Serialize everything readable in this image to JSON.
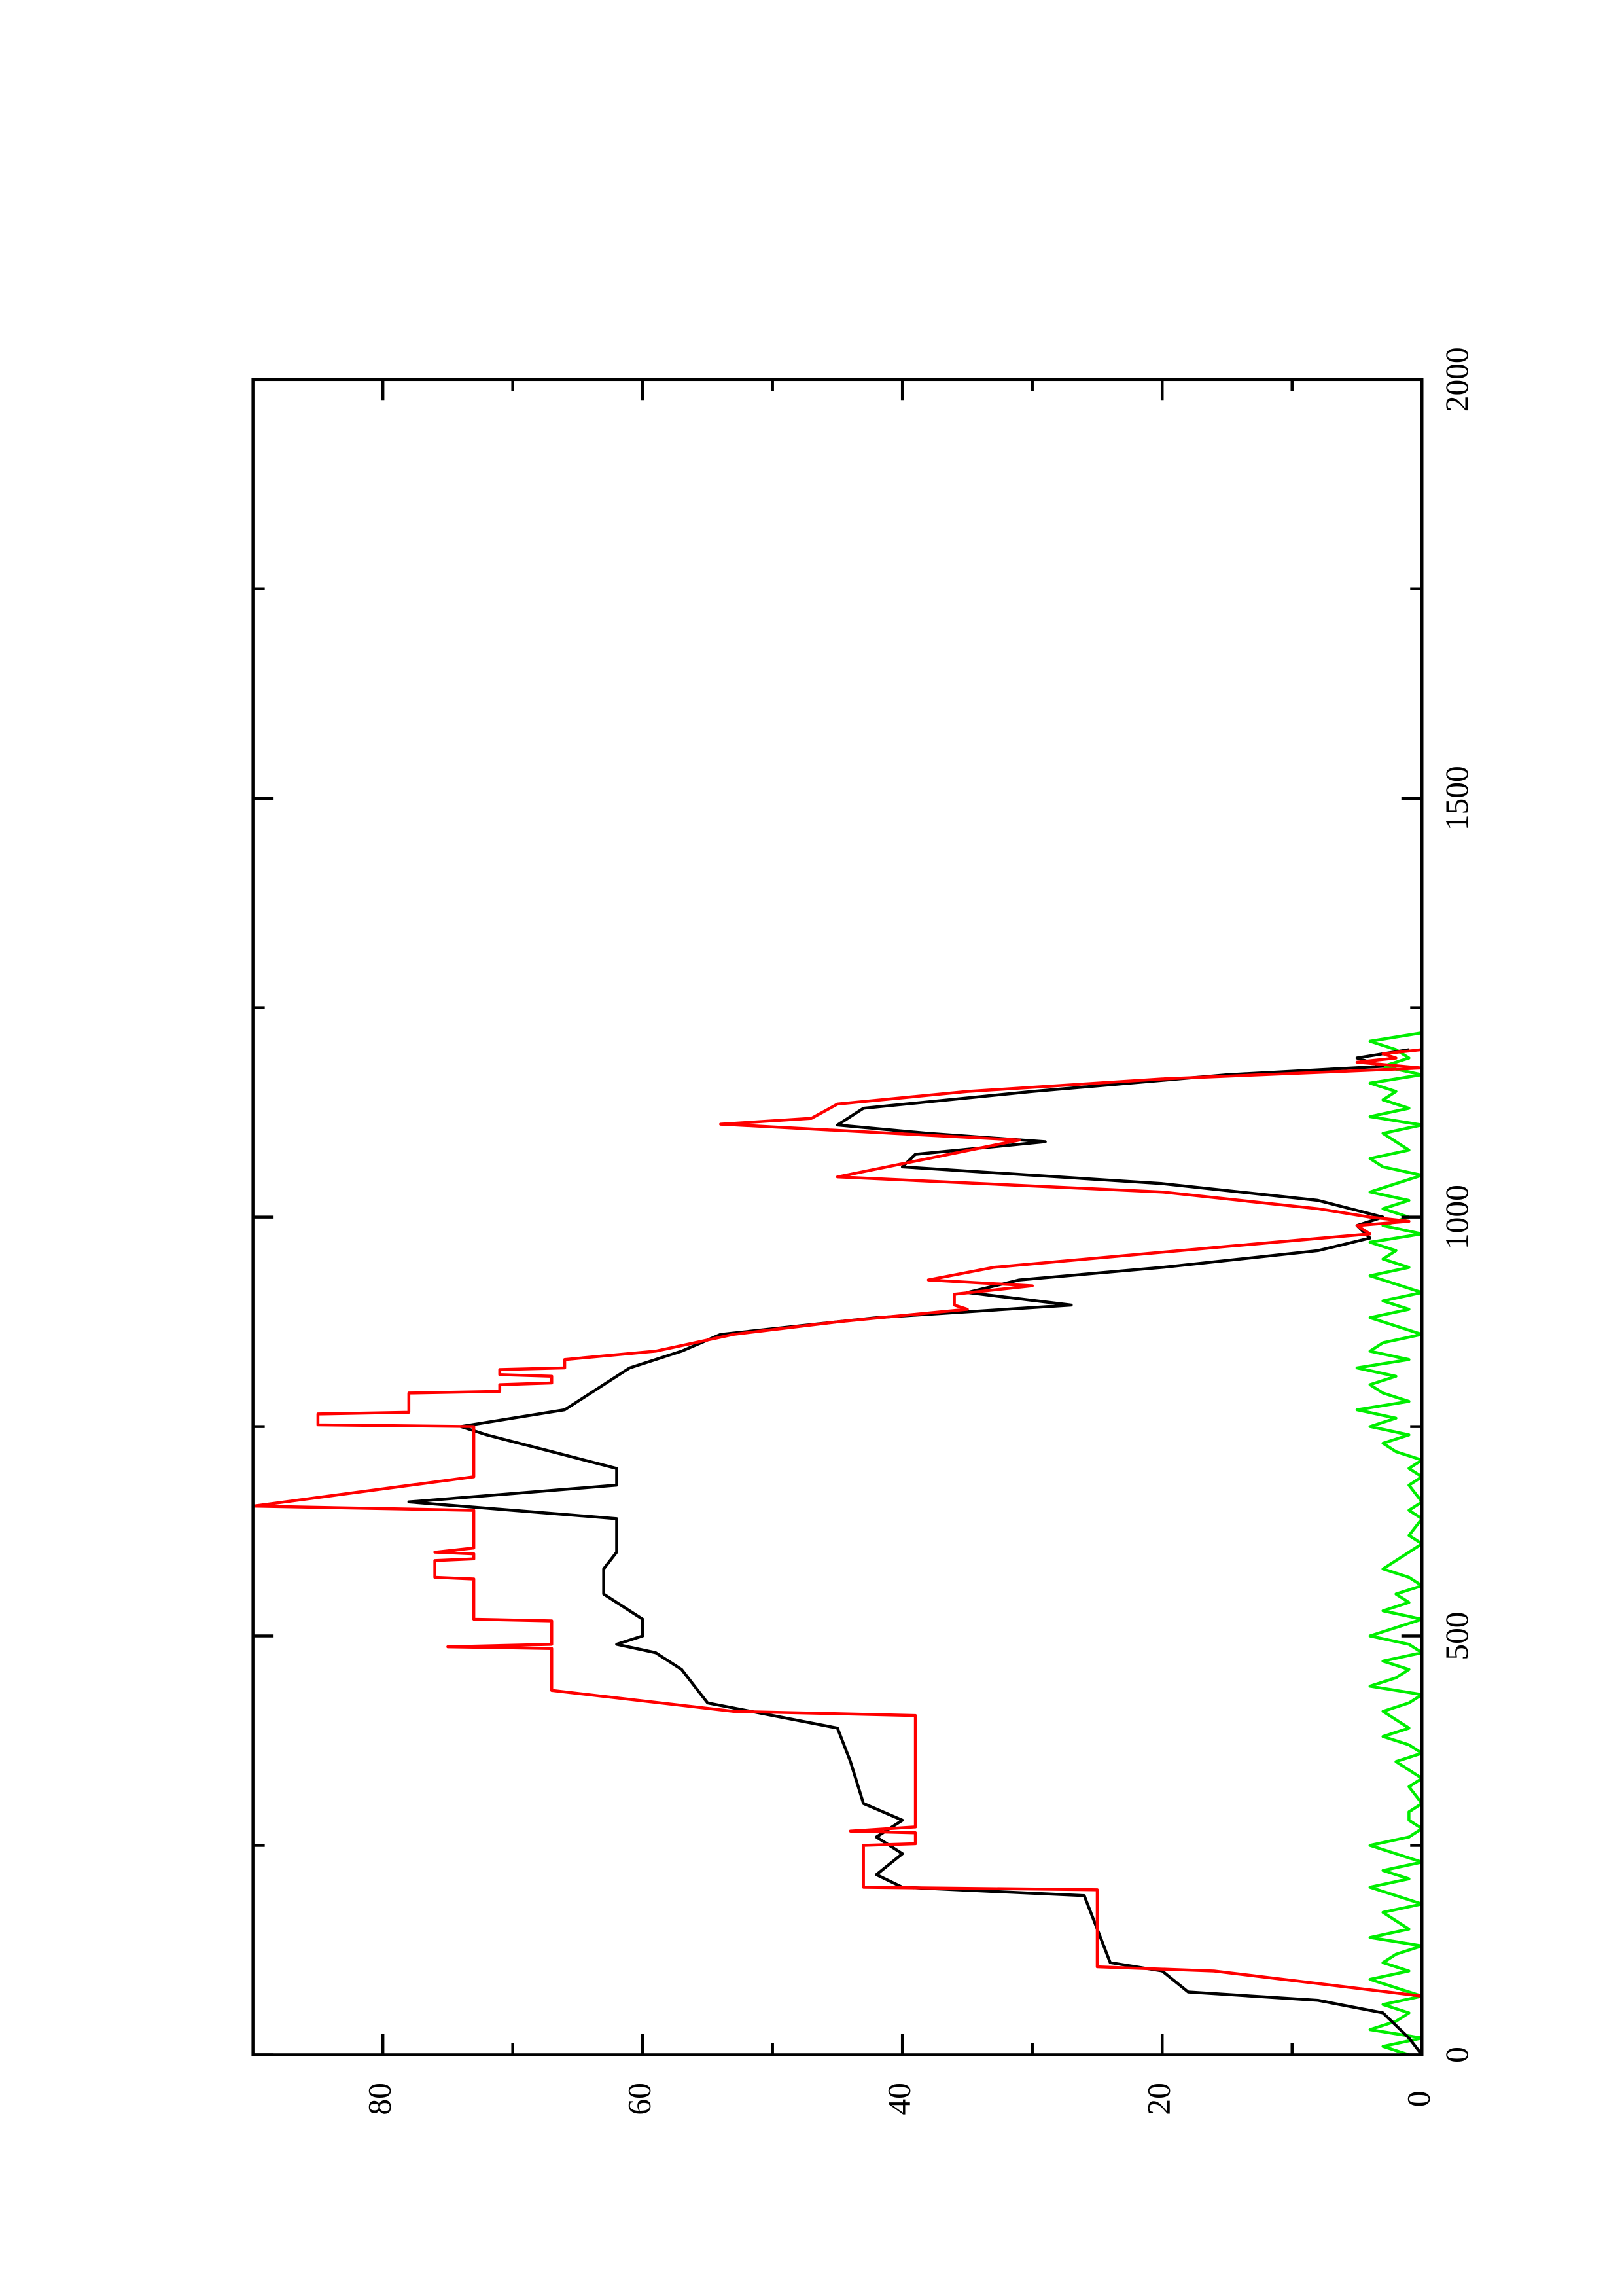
{
  "chart_data": {
    "type": "line",
    "rotation": -90,
    "xlim": [
      0,
      2000
    ],
    "ylim": [
      0,
      90
    ],
    "xticks": [
      0,
      500,
      1000,
      1500,
      2000
    ],
    "yticks": [
      0,
      20,
      40,
      60,
      80
    ],
    "xminor": [
      250,
      750,
      1250,
      1750
    ],
    "yminor": [
      10,
      30,
      50,
      70
    ],
    "series": [
      {
        "color": "#ff0000",
        "x": [
          0,
          70,
          100,
          105,
          197,
          200,
          250,
          252,
          265,
          267,
          272,
          405,
          410,
          435,
          485,
          487,
          490,
          518,
          520,
          568,
          570,
          590,
          592,
          598,
          600,
          605,
          650,
          655,
          690,
          750,
          752,
          765,
          767,
          790,
          792,
          800,
          802,
          810,
          812,
          818,
          820,
          830,
          840,
          860,
          875,
          890,
          895,
          908,
          918,
          925,
          940,
          965,
          980,
          990,
          995,
          1000,
          1010,
          1030,
          1048,
          1070,
          1092,
          1111,
          1118,
          1135,
          1150,
          1165,
          1178,
          1185,
          1190,
          1195,
          1200
        ],
        "values": [
          0,
          0,
          16,
          25,
          25,
          43,
          43,
          39,
          39,
          44,
          39,
          39,
          53,
          67,
          67,
          75,
          67,
          67,
          73,
          73,
          76,
          76,
          73,
          73,
          76,
          73,
          73,
          90,
          73,
          73,
          85,
          85,
          78,
          78,
          71,
          71,
          67,
          67,
          71,
          71,
          66,
          66,
          59,
          53,
          45,
          35,
          36,
          36,
          30,
          38,
          33,
          15,
          4,
          5,
          1,
          4,
          8,
          20,
          45,
          38,
          31,
          54,
          47,
          45,
          35,
          20,
          0,
          5,
          2,
          3,
          0
        ]
      },
      {
        "color": "#000000",
        "x": [
          0,
          20,
          50,
          65,
          75,
          100,
          110,
          150,
          190,
          200,
          215,
          240,
          260,
          280,
          300,
          350,
          390,
          420,
          440,
          460,
          480,
          490,
          500,
          520,
          550,
          580,
          600,
          640,
          660,
          680,
          700,
          720,
          740,
          750,
          770,
          800,
          820,
          840,
          860,
          880,
          895,
          910,
          925,
          940,
          960,
          975,
          990,
          1000,
          1020,
          1040,
          1060,
          1075,
          1090,
          1100,
          1110,
          1130,
          1150,
          1170,
          1180,
          1190,
          1200
        ],
        "values": [
          0,
          1,
          3,
          8,
          18,
          20,
          24,
          25,
          26,
          40,
          42,
          40,
          42,
          40,
          43,
          44,
          45,
          55,
          56,
          57,
          59,
          62,
          60,
          60,
          63,
          63,
          62,
          62,
          78,
          62,
          62,
          67,
          72,
          74,
          66,
          63,
          61,
          57,
          54,
          42,
          27,
          35,
          31,
          20,
          8,
          4,
          5,
          3,
          8,
          20,
          40,
          39,
          29,
          38,
          45,
          43,
          30,
          15,
          3,
          5,
          1
        ]
      },
      {
        "color": "#00ee00",
        "x": [
          0,
          10,
          20,
          30,
          40,
          50,
          60,
          70,
          80,
          90,
          100,
          110,
          120,
          130,
          140,
          150,
          160,
          170,
          180,
          190,
          200,
          210,
          220,
          230,
          240,
          250,
          260,
          270,
          280,
          290,
          300,
          310,
          320,
          330,
          340,
          350,
          360,
          370,
          380,
          390,
          400,
          410,
          420,
          430,
          440,
          450,
          460,
          470,
          480,
          490,
          500,
          510,
          520,
          530,
          540,
          550,
          560,
          570,
          580,
          590,
          600,
          610,
          620,
          630,
          640,
          650,
          660,
          670,
          680,
          690,
          700,
          710,
          720,
          730,
          740,
          750,
          760,
          770,
          780,
          790,
          800,
          810,
          820,
          830,
          840,
          850,
          860,
          870,
          880,
          890,
          900,
          910,
          920,
          930,
          940,
          950,
          960,
          970,
          980,
          990,
          1000,
          1010,
          1020,
          1030,
          1040,
          1050,
          1060,
          1070,
          1080,
          1090,
          1100,
          1110,
          1120,
          1130,
          1140,
          1150,
          1160,
          1170,
          1180,
          1190,
          1200,
          1210,
          1220
        ],
        "values": [
          1,
          3,
          0,
          4,
          2,
          1,
          3,
          0,
          2,
          4,
          1,
          3,
          2,
          0,
          4,
          1,
          2,
          3,
          0,
          2,
          4,
          1,
          3,
          0,
          2,
          4,
          1,
          0,
          1,
          1,
          0,
          0.5,
          1,
          0,
          1,
          2,
          0,
          1,
          3,
          1,
          2,
          3,
          1,
          0,
          4,
          2,
          1,
          3,
          0,
          1,
          4,
          2,
          0,
          3,
          1,
          2,
          0,
          1,
          3,
          2,
          1,
          0,
          1,
          0.5,
          0,
          1,
          0,
          0.5,
          1,
          0,
          1,
          0,
          2,
          3,
          1,
          4,
          2,
          5,
          1,
          3,
          4,
          2,
          5,
          1,
          4,
          3,
          0,
          2,
          4,
          1,
          3,
          0,
          2,
          4,
          1,
          3,
          2,
          4,
          0,
          3,
          1,
          3,
          1,
          4,
          2,
          0,
          3,
          4,
          1,
          2,
          3,
          0,
          4,
          1,
          3,
          2,
          4,
          0,
          3,
          1,
          2,
          4,
          0
        ]
      }
    ]
  }
}
